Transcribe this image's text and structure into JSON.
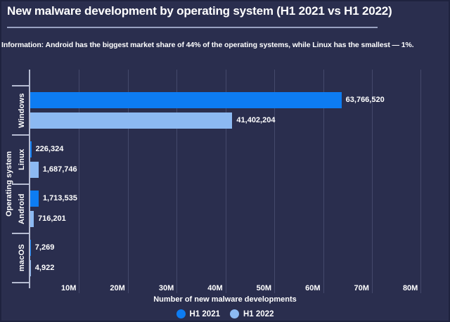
{
  "page": {
    "title": "New malware development by operating system (H1 2021 vs H1 2022)",
    "info": "Information: Android has the biggest market share of 44% of the operating systems, while Linux has the smallest — 1%."
  },
  "chart_data": {
    "type": "bar",
    "orientation": "horizontal",
    "title": "New malware development by operating system (H1 2021 vs H1 2022)",
    "categories": [
      "Windows",
      "Linux",
      "Android",
      "macOS"
    ],
    "series": [
      {
        "name": "H1 2021",
        "color": "#0d7cf2",
        "values": [
          63766520,
          226324,
          1713535,
          7269
        ],
        "value_labels": [
          "63,766,520",
          "226,324",
          "1,713,535",
          "7,269"
        ]
      },
      {
        "name": "H1 2022",
        "color": "#8cb9f2",
        "values": [
          41402204,
          1687746,
          716201,
          4922
        ],
        "value_labels": [
          "41,402,204",
          "1,687,746",
          "716,201",
          "4,922"
        ]
      }
    ],
    "xlabel": "Number of new malware developments",
    "ylabel": "Operating system",
    "x_ticks": [
      "10M",
      "20M",
      "30M",
      "40M",
      "50M",
      "60M",
      "70M",
      "80M"
    ],
    "x_tick_values": [
      10000000,
      20000000,
      30000000,
      40000000,
      50000000,
      60000000,
      70000000,
      80000000
    ],
    "xlim": [
      0,
      86000000
    ],
    "grid": true,
    "legend_position": "bottom"
  },
  "colors": {
    "background": "#2a2e4e",
    "text": "#ffffff",
    "gridline": "#44496b",
    "axis": "#b6bcd2",
    "divider": "#99a1c0",
    "h1_2021": "#0d7cf2",
    "h1_2022": "#8cb9f2"
  }
}
